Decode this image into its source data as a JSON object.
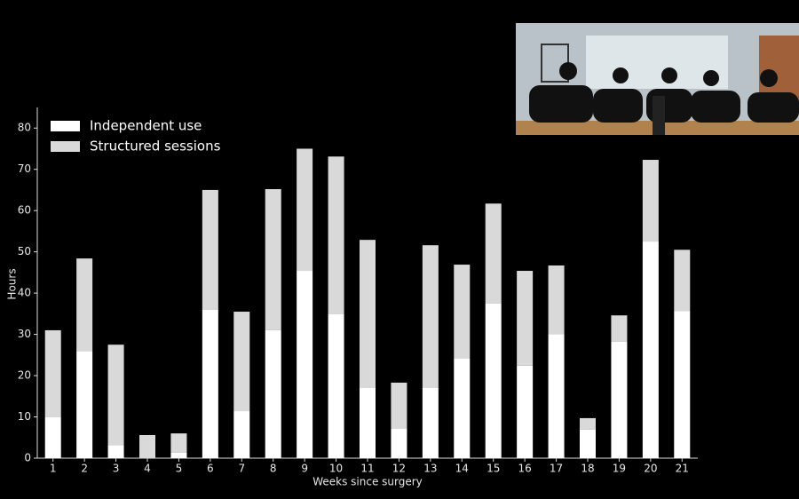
{
  "chart_data": {
    "type": "stacked-bar",
    "xlabel": "Weeks since surgery",
    "ylabel": "Hours",
    "categories": [
      "1",
      "2",
      "3",
      "4",
      "5",
      "6",
      "7",
      "8",
      "9",
      "10",
      "11",
      "12",
      "13",
      "14",
      "15",
      "16",
      "17",
      "18",
      "19",
      "20",
      "21"
    ],
    "series": [
      {
        "name": "Independent use",
        "color": "#ffffff",
        "values": [
          9.9,
          26,
          3.2,
          0,
          1.3,
          36.1,
          11.4,
          31,
          45.4,
          35,
          17,
          7.1,
          17,
          24.1,
          37.6,
          22.4,
          30.1,
          6.9,
          28.2,
          52.5,
          35.7
        ]
      },
      {
        "name": "Structured sessions",
        "color": "#d9d9d9",
        "values": [
          21.1,
          22.4,
          24.3,
          5.6,
          4.7,
          28.9,
          24.1,
          34.2,
          29.6,
          38.1,
          35.9,
          11.2,
          34.6,
          22.8,
          24.1,
          23,
          16.6,
          2.8,
          6.4,
          19.8,
          14.8
        ]
      }
    ],
    "ylim": [
      0,
      85
    ],
    "yticks": [
      0,
      10,
      20,
      30,
      40,
      50,
      60,
      70,
      80
    ],
    "legend": "upper left"
  }
}
